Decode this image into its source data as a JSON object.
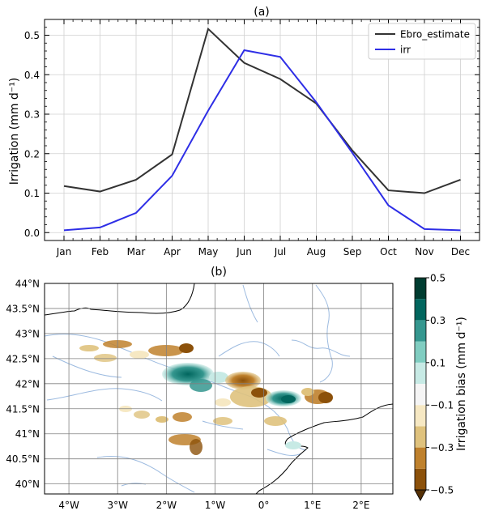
{
  "chart_data": [
    {
      "type": "line",
      "title": "(a)",
      "ylabel": "Irrigation (mm d⁻¹)",
      "xlabel": "",
      "categories": [
        "Jan",
        "Feb",
        "Mar",
        "Apr",
        "May",
        "Jun",
        "Jul",
        "Aug",
        "Sep",
        "Oct",
        "Nov",
        "Dec"
      ],
      "ylim": [
        -0.02,
        0.54
      ],
      "yticks": [
        "0.0",
        "0.1",
        "0.2",
        "0.3",
        "0.4",
        "0.5"
      ],
      "grid": true,
      "legend_position": "top-right",
      "series": [
        {
          "name": "Ebro_estimate",
          "color": "#333333",
          "values": [
            0.118,
            0.104,
            0.134,
            0.198,
            0.516,
            0.43,
            0.389,
            0.327,
            0.208,
            0.107,
            0.1,
            0.134
          ]
        },
        {
          "name": "irr",
          "color": "#2e2ee6",
          "values": [
            0.006,
            0.013,
            0.05,
            0.144,
            0.309,
            0.462,
            0.445,
            0.33,
            0.202,
            0.069,
            0.009,
            0.006
          ]
        }
      ]
    },
    {
      "type": "heatmap",
      "title": "(b)",
      "xticks": [
        "4°W",
        "3°W",
        "2°W",
        "1°W",
        "0°",
        "1°E",
        "2°E"
      ],
      "yticks": [
        "44°N",
        "43.5°N",
        "43°N",
        "42.5°N",
        "42°N",
        "41.5°N",
        "41°N",
        "40.5°N",
        "40°N"
      ],
      "xlim": [
        -4.5,
        2.65
      ],
      "ylim": [
        39.8,
        44.0
      ],
      "colorbar": {
        "label": "Irrigation bias (mm d⁻¹)",
        "ticks": [
          "0.5",
          "0.3",
          "0.1",
          "−0.1",
          "−0.3",
          "−0.5"
        ],
        "range": [
          -0.5,
          0.5
        ],
        "colors": [
          "#543005",
          "#8c510a",
          "#bf812d",
          "#dfc27d",
          "#f6e8c3",
          "#f5f5f5",
          "#c7eae5",
          "#80cdc1",
          "#35978f",
          "#01665e",
          "#003c30"
        ]
      }
    }
  ]
}
